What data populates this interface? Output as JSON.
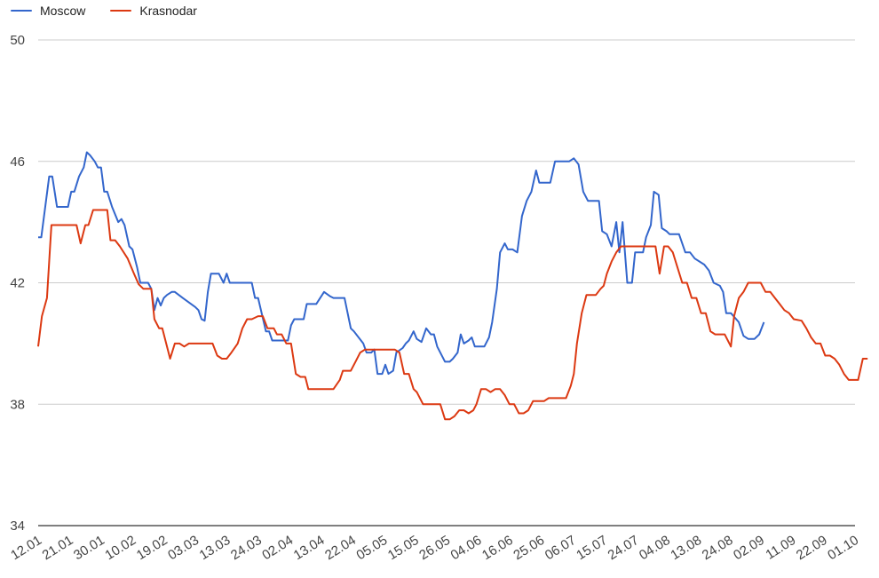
{
  "chart_data": {
    "type": "line",
    "title": "",
    "xlabel": "",
    "ylabel": "",
    "ylim": [
      34,
      50
    ],
    "y_ticks": [
      34,
      38,
      42,
      46,
      50
    ],
    "grid": true,
    "legend_position": "top-left",
    "x_tick_labels": [
      "12.01",
      "21.01",
      "30.01",
      "10.02",
      "19.02",
      "03.03",
      "13.03",
      "24.03",
      "02.04",
      "13.04",
      "22.04",
      "05.05",
      "15.05",
      "26.05",
      "04.06",
      "16.06",
      "25.06",
      "06.07",
      "15.07",
      "24.07",
      "04.08",
      "13.08",
      "24.08",
      "02.09",
      "11.09",
      "22.09",
      "01.10"
    ],
    "series": [
      {
        "name": "Moscow",
        "color": "#3366cc",
        "points": [
          [
            0,
            43.5
          ],
          [
            0.1,
            43.5
          ],
          [
            0.35,
            45.5
          ],
          [
            0.45,
            45.5
          ],
          [
            0.6,
            44.5
          ],
          [
            0.95,
            44.5
          ],
          [
            1.05,
            45.0
          ],
          [
            1.15,
            45.0
          ],
          [
            1.3,
            45.5
          ],
          [
            1.45,
            45.8
          ],
          [
            1.55,
            46.3
          ],
          [
            1.65,
            46.2
          ],
          [
            1.8,
            46.0
          ],
          [
            1.9,
            45.8
          ],
          [
            2.0,
            45.8
          ],
          [
            2.1,
            45.0
          ],
          [
            2.2,
            45.0
          ],
          [
            2.35,
            44.5
          ],
          [
            2.55,
            44.0
          ],
          [
            2.65,
            44.1
          ],
          [
            2.75,
            43.9
          ],
          [
            2.9,
            43.2
          ],
          [
            3.0,
            43.1
          ],
          [
            3.15,
            42.5
          ],
          [
            3.25,
            42.0
          ],
          [
            3.35,
            42.0
          ],
          [
            3.5,
            42.0
          ],
          [
            3.6,
            41.8
          ],
          [
            3.7,
            41.1
          ],
          [
            3.8,
            41.5
          ],
          [
            3.9,
            41.25
          ],
          [
            4.0,
            41.5
          ],
          [
            4.1,
            41.6
          ],
          [
            4.25,
            41.7
          ],
          [
            4.35,
            41.7
          ],
          [
            4.6,
            41.5
          ],
          [
            5.0,
            41.2
          ],
          [
            5.1,
            41.1
          ],
          [
            5.2,
            40.8
          ],
          [
            5.3,
            40.75
          ],
          [
            5.4,
            41.7
          ],
          [
            5.5,
            42.3
          ],
          [
            5.75,
            42.3
          ],
          [
            5.9,
            42.0
          ],
          [
            6.0,
            42.3
          ],
          [
            6.1,
            42.0
          ],
          [
            6.8,
            42.0
          ],
          [
            6.9,
            41.5
          ],
          [
            7.0,
            41.5
          ],
          [
            7.25,
            40.4
          ],
          [
            7.35,
            40.4
          ],
          [
            7.45,
            40.1
          ],
          [
            7.95,
            40.1
          ],
          [
            8.05,
            40.6
          ],
          [
            8.15,
            40.8
          ],
          [
            8.45,
            40.8
          ],
          [
            8.55,
            41.3
          ],
          [
            8.85,
            41.3
          ],
          [
            9.1,
            41.7
          ],
          [
            9.3,
            41.55
          ],
          [
            9.4,
            41.5
          ],
          [
            9.75,
            41.5
          ],
          [
            9.95,
            40.5
          ],
          [
            10.05,
            40.4
          ],
          [
            10.35,
            40.0
          ],
          [
            10.45,
            39.7
          ],
          [
            10.6,
            39.7
          ],
          [
            10.7,
            39.8
          ],
          [
            10.8,
            39.0
          ],
          [
            10.95,
            39.0
          ],
          [
            11.05,
            39.3
          ],
          [
            11.15,
            39.0
          ],
          [
            11.3,
            39.1
          ],
          [
            11.4,
            39.7
          ],
          [
            11.6,
            39.85
          ],
          [
            11.7,
            40.0
          ],
          [
            11.8,
            40.1
          ],
          [
            11.95,
            40.4
          ],
          [
            12.05,
            40.15
          ],
          [
            12.2,
            40.05
          ],
          [
            12.35,
            40.5
          ],
          [
            12.5,
            40.3
          ],
          [
            12.6,
            40.3
          ],
          [
            12.7,
            39.9
          ],
          [
            12.95,
            39.4
          ],
          [
            13.1,
            39.4
          ],
          [
            13.2,
            39.5
          ],
          [
            13.35,
            39.7
          ],
          [
            13.45,
            40.3
          ],
          [
            13.55,
            40.0
          ],
          [
            13.7,
            40.1
          ],
          [
            13.8,
            40.2
          ],
          [
            13.9,
            39.9
          ],
          [
            14.2,
            39.9
          ],
          [
            14.35,
            40.2
          ],
          [
            14.45,
            40.7
          ],
          [
            14.6,
            41.8
          ],
          [
            14.7,
            43.0
          ],
          [
            14.85,
            43.3
          ],
          [
            14.95,
            43.1
          ],
          [
            15.1,
            43.1
          ],
          [
            15.25,
            43.0
          ],
          [
            15.4,
            44.2
          ],
          [
            15.55,
            44.7
          ],
          [
            15.7,
            45.0
          ],
          [
            15.85,
            45.7
          ],
          [
            15.95,
            45.3
          ],
          [
            16.3,
            45.3
          ],
          [
            16.45,
            46.0
          ],
          [
            16.9,
            46.0
          ],
          [
            17.05,
            46.1
          ],
          [
            17.2,
            45.9
          ],
          [
            17.35,
            45.0
          ],
          [
            17.5,
            44.7
          ],
          [
            17.85,
            44.7
          ],
          [
            17.95,
            43.7
          ],
          [
            18.1,
            43.6
          ],
          [
            18.25,
            43.2
          ],
          [
            18.4,
            44.0
          ],
          [
            18.5,
            43.0
          ],
          [
            18.6,
            44.0
          ],
          [
            18.75,
            42.0
          ],
          [
            18.9,
            42.0
          ],
          [
            19.0,
            43.0
          ],
          [
            19.25,
            43.0
          ],
          [
            19.35,
            43.5
          ],
          [
            19.5,
            43.9
          ],
          [
            19.6,
            45.0
          ],
          [
            19.75,
            44.9
          ],
          [
            19.85,
            43.8
          ],
          [
            20.0,
            43.7
          ],
          [
            20.1,
            43.6
          ],
          [
            20.4,
            43.6
          ],
          [
            20.6,
            43.0
          ],
          [
            20.75,
            43.0
          ],
          [
            20.9,
            42.8
          ],
          [
            21.2,
            42.6
          ],
          [
            21.35,
            42.4
          ],
          [
            21.5,
            42.0
          ],
          [
            21.7,
            41.9
          ],
          [
            21.8,
            41.7
          ],
          [
            21.9,
            41.0
          ],
          [
            22.05,
            41.0
          ],
          [
            22.3,
            40.7
          ],
          [
            22.45,
            40.25
          ],
          [
            22.6,
            40.15
          ],
          [
            22.8,
            40.15
          ],
          [
            22.95,
            40.3
          ],
          [
            23.1,
            40.7
          ]
        ]
      },
      {
        "name": "Krasnodar",
        "color": "#dc3912",
        "points": [
          [
            0,
            39.9
          ],
          [
            0.12,
            40.9
          ],
          [
            0.28,
            41.5
          ],
          [
            0.42,
            43.9
          ],
          [
            1.22,
            43.9
          ],
          [
            1.35,
            43.3
          ],
          [
            1.5,
            43.9
          ],
          [
            1.6,
            43.9
          ],
          [
            1.75,
            44.4
          ],
          [
            2.2,
            44.4
          ],
          [
            2.3,
            43.4
          ],
          [
            2.45,
            43.4
          ],
          [
            2.6,
            43.2
          ],
          [
            2.85,
            42.8
          ],
          [
            3.05,
            42.3
          ],
          [
            3.2,
            41.95
          ],
          [
            3.35,
            41.8
          ],
          [
            3.6,
            41.8
          ],
          [
            3.7,
            40.8
          ],
          [
            3.85,
            40.5
          ],
          [
            3.95,
            40.5
          ],
          [
            4.2,
            39.5
          ],
          [
            4.35,
            40.0
          ],
          [
            4.5,
            40.0
          ],
          [
            4.65,
            39.9
          ],
          [
            4.8,
            40.0
          ],
          [
            5.55,
            40.0
          ],
          [
            5.7,
            39.6
          ],
          [
            5.85,
            39.5
          ],
          [
            6.0,
            39.5
          ],
          [
            6.15,
            39.7
          ],
          [
            6.35,
            40.0
          ],
          [
            6.5,
            40.5
          ],
          [
            6.65,
            40.8
          ],
          [
            6.8,
            40.8
          ],
          [
            7.0,
            40.9
          ],
          [
            7.15,
            40.9
          ],
          [
            7.3,
            40.5
          ],
          [
            7.5,
            40.5
          ],
          [
            7.6,
            40.3
          ],
          [
            7.75,
            40.3
          ],
          [
            7.9,
            40.0
          ],
          [
            8.05,
            40.0
          ],
          [
            8.2,
            39.0
          ],
          [
            8.35,
            38.9
          ],
          [
            8.5,
            38.9
          ],
          [
            8.6,
            38.5
          ],
          [
            9.4,
            38.5
          ],
          [
            9.6,
            38.8
          ],
          [
            9.7,
            39.1
          ],
          [
            9.95,
            39.1
          ],
          [
            10.1,
            39.4
          ],
          [
            10.25,
            39.7
          ],
          [
            10.4,
            39.8
          ],
          [
            11.35,
            39.8
          ],
          [
            11.5,
            39.7
          ],
          [
            11.65,
            39.0
          ],
          [
            11.8,
            39.0
          ],
          [
            11.95,
            38.5
          ],
          [
            12.05,
            38.4
          ],
          [
            12.25,
            38.0
          ],
          [
            12.8,
            38.0
          ],
          [
            12.95,
            37.5
          ],
          [
            13.1,
            37.5
          ],
          [
            13.25,
            37.6
          ],
          [
            13.4,
            37.8
          ],
          [
            13.55,
            37.8
          ],
          [
            13.7,
            37.7
          ],
          [
            13.85,
            37.8
          ],
          [
            13.95,
            38.0
          ],
          [
            14.1,
            38.5
          ],
          [
            14.25,
            38.5
          ],
          [
            14.4,
            38.4
          ],
          [
            14.55,
            38.5
          ],
          [
            14.7,
            38.5
          ],
          [
            14.85,
            38.3
          ],
          [
            15.0,
            38.0
          ],
          [
            15.15,
            38.0
          ],
          [
            15.3,
            37.7
          ],
          [
            15.45,
            37.7
          ],
          [
            15.6,
            37.8
          ],
          [
            15.75,
            38.1
          ],
          [
            16.1,
            38.1
          ],
          [
            16.25,
            38.2
          ],
          [
            16.6,
            38.2
          ],
          [
            16.8,
            38.2
          ],
          [
            16.95,
            38.6
          ],
          [
            17.05,
            39.0
          ],
          [
            17.15,
            40.0
          ],
          [
            17.3,
            41.0
          ],
          [
            17.45,
            41.6
          ],
          [
            17.6,
            41.6
          ],
          [
            17.75,
            41.6
          ],
          [
            17.9,
            41.8
          ],
          [
            18.0,
            41.9
          ],
          [
            18.1,
            42.3
          ],
          [
            18.25,
            42.7
          ],
          [
            18.4,
            43.0
          ],
          [
            18.55,
            43.2
          ],
          [
            19.65,
            43.2
          ],
          [
            19.78,
            42.3
          ],
          [
            19.92,
            43.2
          ],
          [
            20.05,
            43.2
          ],
          [
            20.2,
            43.0
          ],
          [
            20.35,
            42.5
          ],
          [
            20.5,
            42.0
          ],
          [
            20.65,
            42.0
          ],
          [
            20.8,
            41.5
          ],
          [
            20.95,
            41.5
          ],
          [
            21.1,
            41.0
          ],
          [
            21.25,
            41.0
          ],
          [
            21.4,
            40.4
          ],
          [
            21.55,
            40.3
          ],
          [
            21.7,
            40.3
          ],
          [
            21.85,
            40.3
          ],
          [
            22.0,
            40.0
          ],
          [
            22.05,
            39.9
          ],
          [
            22.15,
            40.9
          ],
          [
            22.3,
            41.5
          ],
          [
            22.45,
            41.7
          ],
          [
            22.6,
            42.0
          ],
          [
            22.75,
            42.0
          ],
          [
            23.0,
            42.0
          ],
          [
            23.15,
            41.7
          ],
          [
            23.3,
            41.7
          ],
          [
            23.45,
            41.5
          ],
          [
            23.6,
            41.3
          ],
          [
            23.75,
            41.1
          ],
          [
            23.9,
            41.0
          ],
          [
            24.05,
            40.8
          ],
          [
            24.3,
            40.75
          ],
          [
            24.45,
            40.5
          ],
          [
            24.6,
            40.2
          ],
          [
            24.75,
            40.0
          ],
          [
            24.9,
            40.0
          ],
          [
            25.05,
            39.6
          ],
          [
            25.2,
            39.6
          ],
          [
            25.35,
            39.5
          ],
          [
            25.5,
            39.3
          ],
          [
            25.65,
            39.0
          ],
          [
            25.8,
            38.8
          ],
          [
            26.1,
            38.8
          ],
          [
            26.25,
            39.5
          ],
          [
            26.4,
            39.5
          ]
        ]
      }
    ]
  }
}
